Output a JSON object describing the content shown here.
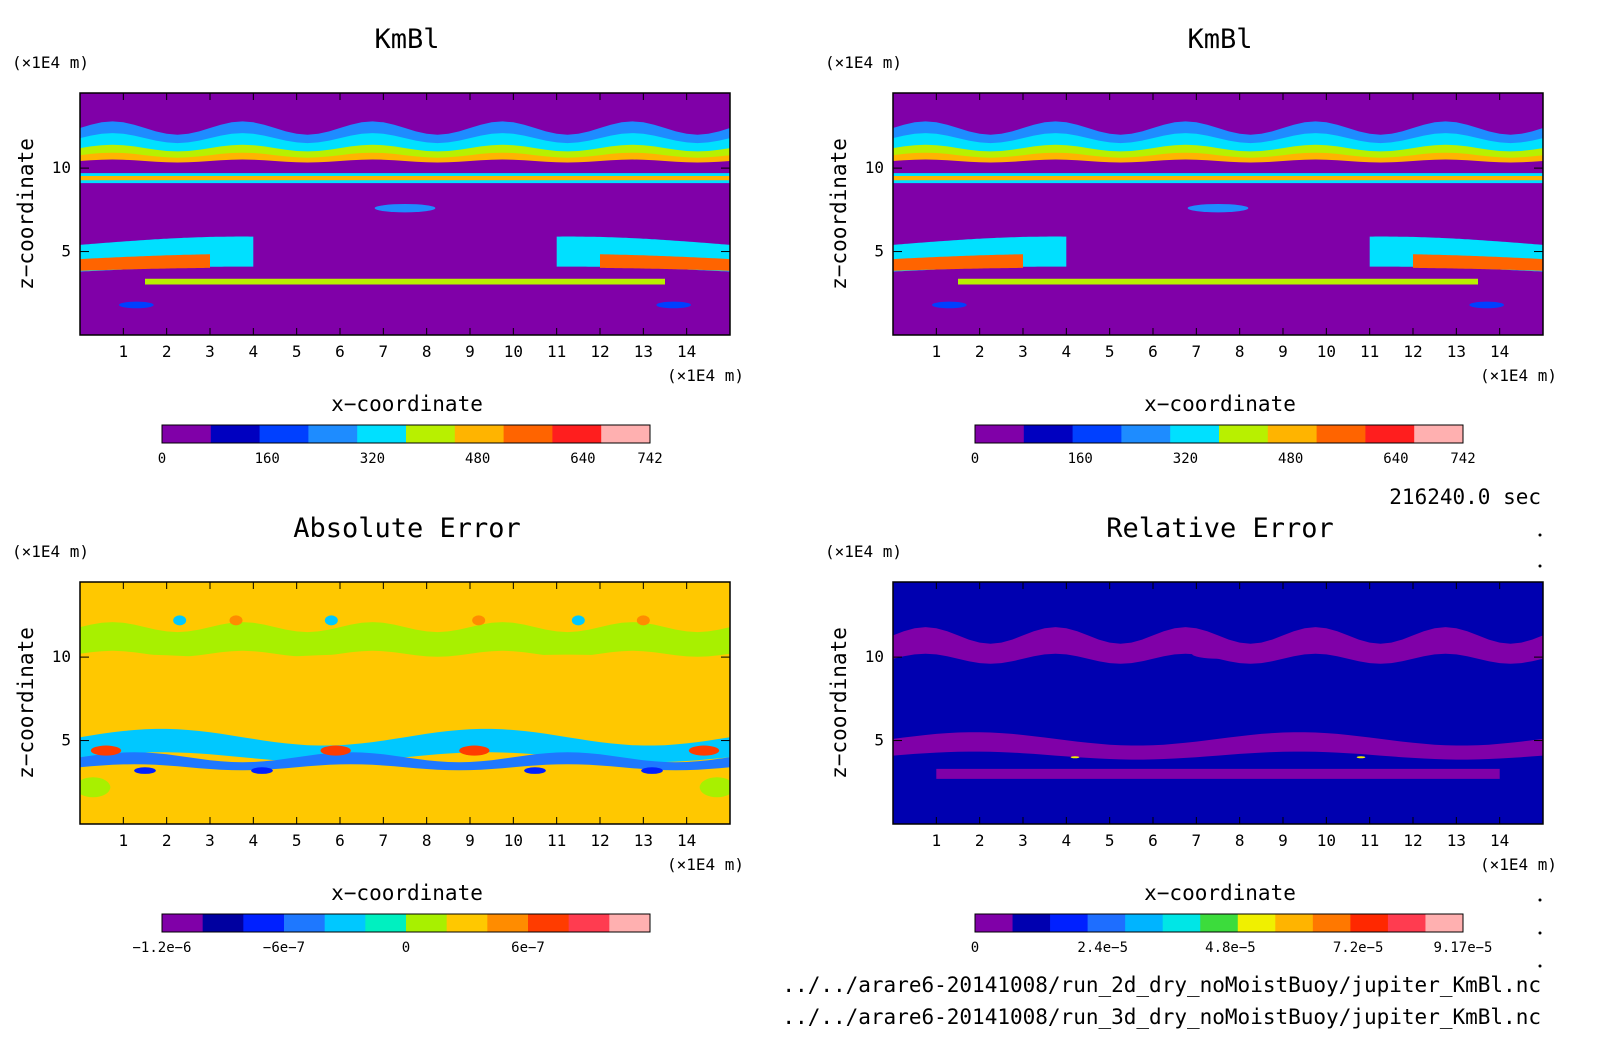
{
  "figure": {
    "time_label": "216240.0 sec",
    "files": [
      "../../arare6-20141008/run_2d_dry_noMoistBuoy/jupiter_KmBl.nc",
      "../../arare6-20141008/run_3d_dry_noMoistBuoy/jupiter_KmBl.nc"
    ]
  },
  "chart_data": [
    {
      "type": "heatmap",
      "title": "KmBl",
      "xlabel": "x−coordinate",
      "ylabel": "z−coordinate",
      "xunit": "(×1E4 m)",
      "yunit": "(×1E4 m)",
      "xlim": [
        0,
        15
      ],
      "ylim": [
        0,
        14.5
      ],
      "xticks": [
        "1",
        "2",
        "3",
        "4",
        "5",
        "6",
        "7",
        "8",
        "9",
        "10",
        "11",
        "12",
        "13",
        "14"
      ],
      "yticks": [
        "5",
        "10"
      ],
      "colorbar": {
        "colors": [
          "#8000a8",
          "#0000c0",
          "#0040ff",
          "#1e8cff",
          "#00e0ff",
          "#b8f000",
          "#ffb400",
          "#ff6400",
          "#ff1e1e",
          "#ffb0b0"
        ],
        "labels": [
          "0",
          "160",
          "320",
          "480",
          "640",
          "742"
        ],
        "range": [
          0,
          742
        ]
      },
      "background": "#8000a8"
    },
    {
      "type": "heatmap",
      "title": "KmBl",
      "xlabel": "x−coordinate",
      "ylabel": "z−coordinate",
      "xunit": "(×1E4 m)",
      "yunit": "(×1E4 m)",
      "xlim": [
        0,
        15
      ],
      "ylim": [
        0,
        14.5
      ],
      "xticks": [
        "1",
        "2",
        "3",
        "4",
        "5",
        "6",
        "7",
        "8",
        "9",
        "10",
        "11",
        "12",
        "13",
        "14"
      ],
      "yticks": [
        "5",
        "10"
      ],
      "colorbar": {
        "colors": [
          "#8000a8",
          "#0000c0",
          "#0040ff",
          "#1e8cff",
          "#00e0ff",
          "#b8f000",
          "#ffb400",
          "#ff6400",
          "#ff1e1e",
          "#ffb0b0"
        ],
        "labels": [
          "0",
          "160",
          "320",
          "480",
          "640",
          "742"
        ],
        "range": [
          0,
          742
        ]
      },
      "background": "#8000a8"
    },
    {
      "type": "heatmap",
      "title": "Absolute Error",
      "xlabel": "x−coordinate",
      "ylabel": "z−coordinate",
      "xunit": "(×1E4 m)",
      "yunit": "(×1E4 m)",
      "xlim": [
        0,
        15
      ],
      "ylim": [
        0,
        14.5
      ],
      "xticks": [
        "1",
        "2",
        "3",
        "4",
        "5",
        "6",
        "7",
        "8",
        "9",
        "10",
        "11",
        "12",
        "13",
        "14"
      ],
      "yticks": [
        "5",
        "10"
      ],
      "colorbar": {
        "colors": [
          "#8000a8",
          "#0000a0",
          "#0020ff",
          "#1e78ff",
          "#00c8ff",
          "#00f0c0",
          "#a8f000",
          "#ffc800",
          "#ff8c00",
          "#ff3c00",
          "#ff3c50",
          "#ffb0b0"
        ],
        "labels": [
          "−1.2e−6",
          "−6e−7",
          "0",
          "6e−7"
        ],
        "range": [
          -1.2e-06,
          1.2e-06
        ]
      },
      "background": "#ffc800"
    },
    {
      "type": "heatmap",
      "title": "Relative Error",
      "xlabel": "x−coordinate",
      "ylabel": "z−coordinate",
      "xunit": "(×1E4 m)",
      "yunit": "(×1E4 m)",
      "xlim": [
        0,
        15
      ],
      "ylim": [
        0,
        14.5
      ],
      "xticks": [
        "1",
        "2",
        "3",
        "4",
        "5",
        "6",
        "7",
        "8",
        "9",
        "10",
        "11",
        "12",
        "13",
        "14"
      ],
      "yticks": [
        "5",
        "10"
      ],
      "colorbar": {
        "colors": [
          "#8000a8",
          "#0000b0",
          "#0020ff",
          "#1e6eff",
          "#00b4ff",
          "#00e6e6",
          "#3cdc3c",
          "#f0f000",
          "#ffb400",
          "#ff7800",
          "#ff2800",
          "#ff3c50",
          "#ffb0b0"
        ],
        "labels": [
          "0",
          "2.4e−5",
          "4.8e−5",
          "7.2e−5",
          "9.17e−5"
        ],
        "range": [
          0,
          9.17e-05
        ]
      },
      "background": "#0000b0"
    }
  ]
}
